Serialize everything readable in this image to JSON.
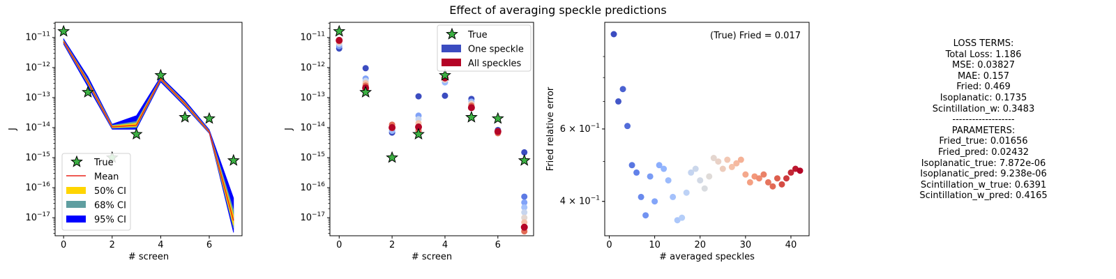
{
  "suptitle": "Effect of averaging speckle predictions",
  "colors": {
    "true_marker": "#3cb043",
    "mean_line": "#e8251a",
    "ci50": "#ffd500",
    "ci68": "#5f9ea0",
    "ci95": "#0000ff",
    "one_speckle": "#3b4cc0",
    "all_speckles": "#b40426"
  },
  "chart_data": [
    {
      "type": "line",
      "xlabel": "# screen",
      "ylabel": "J",
      "yscale": "log",
      "xlim": [
        -0.35,
        7.35
      ],
      "ylim": [
        2.5e-18,
        3.2e-11
      ],
      "xticks": [
        0,
        2,
        4,
        6
      ],
      "yticks": [
        {
          "value": 1e-11,
          "base": "10",
          "exp": "−11"
        },
        {
          "value": 1e-12,
          "base": "10",
          "exp": "−12"
        },
        {
          "value": 1e-13,
          "base": "10",
          "exp": "−13"
        },
        {
          "value": 1e-14,
          "base": "10",
          "exp": "−14"
        },
        {
          "value": 1e-15,
          "base": "10",
          "exp": "−15"
        },
        {
          "value": 1e-16,
          "base": "10",
          "exp": "−16"
        },
        {
          "value": 1e-17,
          "base": "10",
          "exp": "−17"
        }
      ],
      "x": [
        0,
        1,
        2,
        3,
        4,
        5,
        6,
        7
      ],
      "true": [
        1.6e-11,
        1.5e-13,
        1e-15,
        6e-15,
        5.5e-13,
        2.2e-14,
        2e-14,
        8e-16
      ],
      "mean": [
        7.2e-12,
        3.3e-13,
        1.05e-14,
        1.2e-14,
        4.1e-13,
        6.2e-14,
        7.2e-15,
        8e-18
      ],
      "ci50": {
        "lower": [
          6.9e-12,
          3e-13,
          1e-14,
          1.1e-14,
          3.9e-13,
          5.8e-14,
          6.9e-15,
          5.5e-18
        ],
        "upper": [
          7.6e-12,
          3.6e-13,
          1.12e-14,
          1.4e-14,
          4.3e-13,
          6.6e-14,
          7.5e-15,
          1.2e-17
        ]
      },
      "ci68": {
        "lower": [
          6.6e-12,
          2.8e-13,
          9.5e-15,
          1e-14,
          3.7e-13,
          5.5e-14,
          6.7e-15,
          4.5e-18
        ],
        "upper": [
          8e-12,
          4e-13,
          1.2e-14,
          1.6e-14,
          4.5e-13,
          7e-14,
          7.8e-15,
          1.8e-17
        ]
      },
      "ci95": {
        "lower": [
          6e-12,
          2.3e-13,
          8.8e-15,
          8.8e-15,
          3.3e-13,
          5e-14,
          6.4e-15,
          3.2e-18
        ],
        "upper": [
          9e-12,
          5e-13,
          1.3e-14,
          2.5e-14,
          5e-13,
          8e-14,
          8.5e-15,
          4.5e-17
        ]
      },
      "legend": {
        "location": "lower left",
        "entries": [
          "True",
          "Mean",
          "50% CI",
          "68% CI",
          "95% CI"
        ]
      }
    },
    {
      "type": "scatter",
      "xlabel": "# screen",
      "ylabel": "J",
      "yscale": "log",
      "xlim": [
        -0.35,
        7.35
      ],
      "ylim": [
        2.5e-18,
        3.2e-11
      ],
      "xticks": [
        0,
        2,
        4,
        6
      ],
      "yticks": [
        {
          "value": 1e-11,
          "base": "10",
          "exp": "−11"
        },
        {
          "value": 1e-12,
          "base": "10",
          "exp": "−12"
        },
        {
          "value": 1e-13,
          "base": "10",
          "exp": "−13"
        },
        {
          "value": 1e-14,
          "base": "10",
          "exp": "−14"
        },
        {
          "value": 1e-15,
          "base": "10",
          "exp": "−15"
        },
        {
          "value": 1e-16,
          "base": "10",
          "exp": "−16"
        },
        {
          "value": 1e-17,
          "base": "10",
          "exp": "−17"
        }
      ],
      "true": [
        1.6e-11,
        1.5e-13,
        1e-15,
        6e-15,
        5.5e-13,
        2.2e-14,
        2e-14,
        8e-16
      ],
      "one_speckle": [
        {
          "x": 0,
          "y": [
            4.3e-12,
            5.2e-12,
            6.2e-12,
            7.2e-12,
            8.2e-12
          ]
        },
        {
          "x": 1,
          "y": [
            9.5e-13,
            4.3e-13,
            3.6e-13,
            3e-13,
            2.5e-13
          ]
        },
        {
          "x": 2,
          "y": [
            6.8e-15,
            7.8e-15,
            9.5e-15,
            1.25e-14
          ]
        },
        {
          "x": 3,
          "y": [
            1.1e-13,
            2.5e-14,
            1.9e-14,
            1.4e-14,
            8e-15
          ]
        },
        {
          "x": 4,
          "y": [
            1.15e-13,
            3.2e-13,
            3.9e-13,
            4.6e-13
          ]
        },
        {
          "x": 5,
          "y": [
            9e-14,
            7.3e-14,
            6.3e-14,
            5.4e-14
          ]
        },
        {
          "x": 6,
          "y": [
            8.3e-15,
            7.6e-15,
            6.5e-15
          ]
        },
        {
          "x": 7,
          "y": [
            1.5e-15,
            5e-17,
            3.2e-17,
            2.2e-17,
            1.5e-17,
            1e-17,
            7e-18,
            5e-18,
            3.5e-18
          ]
        }
      ],
      "all_speckles": [
        8e-12,
        2.1e-13,
        1e-14,
        1.05e-14,
        4.5e-13,
        4.6e-14,
        7.4e-15,
        4.8e-18
      ],
      "legend": {
        "location": "upper right",
        "entries": [
          "True",
          "One speckle",
          "All speckles"
        ]
      }
    },
    {
      "type": "scatter",
      "xlabel": "# averaged speckles",
      "ylabel": "Fried relative error",
      "yscale": "log",
      "xlim": [
        -1.0,
        44.0
      ],
      "ylim": [
        0.33,
        1.09
      ],
      "xticks": [
        0,
        10,
        20,
        30,
        40
      ],
      "yticks": [
        {
          "value": 0.6,
          "label": "6 × 10",
          "exp": "−1"
        },
        {
          "value": 0.4,
          "label": "4 × 10",
          "exp": "−1"
        }
      ],
      "annotation": "(True) Fried = 0.017",
      "colormap": "coolwarm",
      "x": [
        1,
        2,
        3,
        4,
        5,
        6,
        7,
        8,
        9,
        10,
        11,
        12,
        13,
        14,
        15,
        16,
        17,
        18,
        19,
        20,
        21,
        22,
        23,
        24,
        25,
        26,
        27,
        28,
        29,
        30,
        31,
        32,
        33,
        34,
        35,
        36,
        37,
        38,
        39,
        40,
        41,
        42
      ],
      "y": [
        1.02,
        0.7,
        0.75,
        0.61,
        0.49,
        0.47,
        0.41,
        0.37,
        0.46,
        0.4,
        0.49,
        0.48,
        0.45,
        0.41,
        0.36,
        0.365,
        0.42,
        0.47,
        0.48,
        0.45,
        0.43,
        0.46,
        0.51,
        0.5,
        0.48,
        0.505,
        0.485,
        0.495,
        0.505,
        0.465,
        0.445,
        0.46,
        0.455,
        0.465,
        0.445,
        0.435,
        0.455,
        0.44,
        0.455,
        0.47,
        0.48,
        0.475
      ]
    }
  ],
  "loss_panel": {
    "lines": [
      "LOSS TERMS:",
      "Total Loss: 1.186",
      "MSE: 0.03827",
      "MAE: 0.157",
      "Fried: 0.469",
      "Isoplanatic: 0.1735",
      "Scintillation_w: 0.3483",
      "-------------------",
      "PARAMETERS:",
      "Fried_true: 0.01656",
      "Fried_pred: 0.02432",
      "Isoplanatic_true: 7.872e-06",
      "Isoplanatic_pred: 9.238e-06",
      "Scintillation_w_true: 0.6391",
      "Scintillation_w_pred: 0.4165"
    ]
  }
}
